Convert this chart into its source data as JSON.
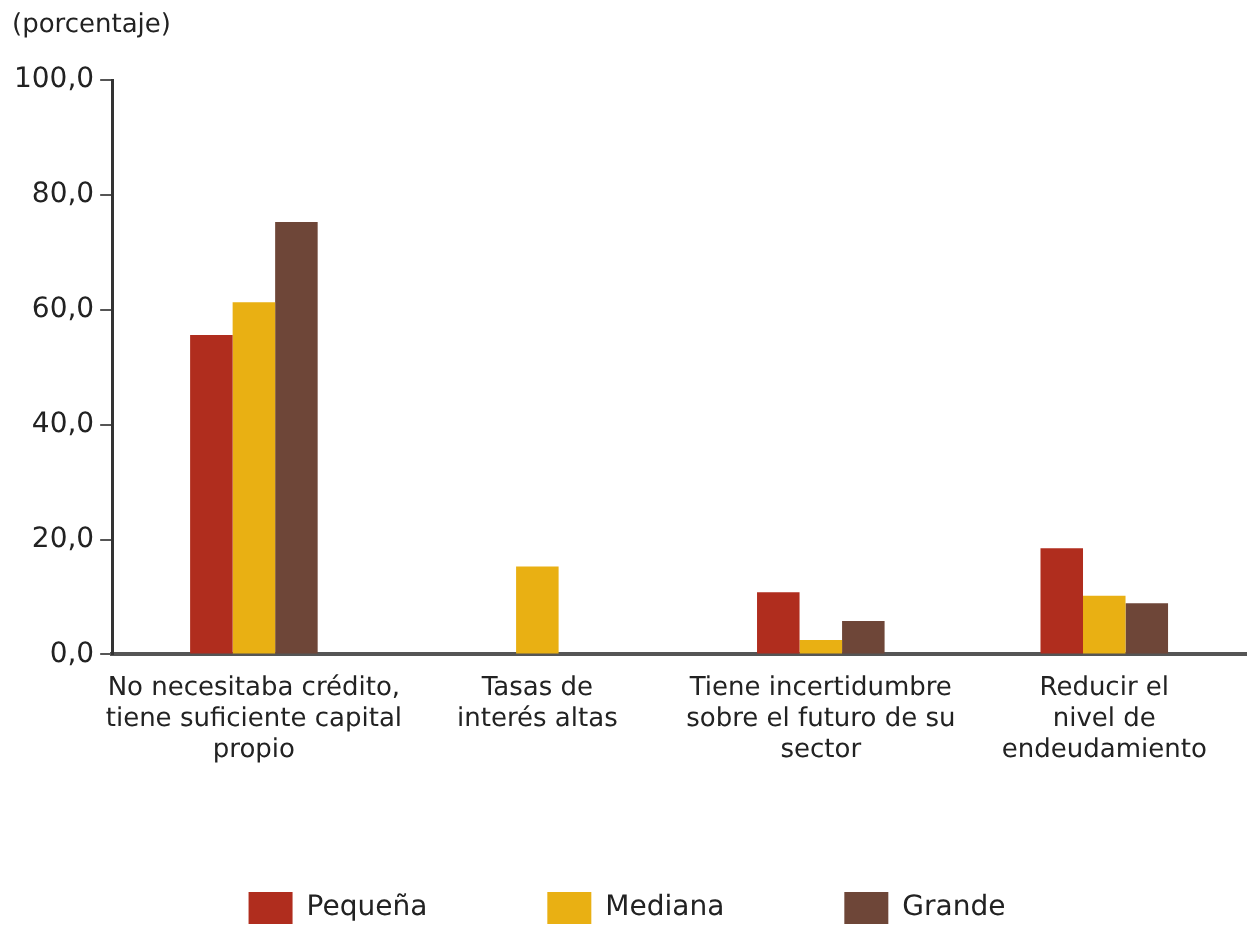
{
  "chart_data": {
    "type": "bar",
    "ylabel": "(porcentaje)",
    "categories": [
      "No necesitaba crédito,\ntiene suficiente capital\npropio",
      "Tasas de\ninterés altas",
      "Tiene incertidumbre\nsobre el futuro de su\nsector",
      "Reducir el\nnivel de\nendeudamiento"
    ],
    "series": [
      {
        "name": "Pequeña",
        "color": "#b02d1e",
        "values": [
          55.6,
          0,
          10.8,
          18.5
        ]
      },
      {
        "name": "Mediana",
        "color": "#e9b013",
        "values": [
          61.3,
          15.3,
          2.5,
          10.2
        ]
      },
      {
        "name": "Grande",
        "color": "#6e4638",
        "values": [
          75.3,
          0,
          5.8,
          8.9
        ]
      }
    ],
    "ylim": [
      0,
      100
    ],
    "yticks": [
      {
        "value": 0,
        "label": "0,0"
      },
      {
        "value": 20,
        "label": "20,0"
      },
      {
        "value": 40,
        "label": "40,0"
      },
      {
        "value": 60,
        "label": "60,0"
      },
      {
        "value": 80,
        "label": "80,0"
      },
      {
        "value": 100,
        "label": "100,0"
      }
    ],
    "legend": "bottom"
  }
}
